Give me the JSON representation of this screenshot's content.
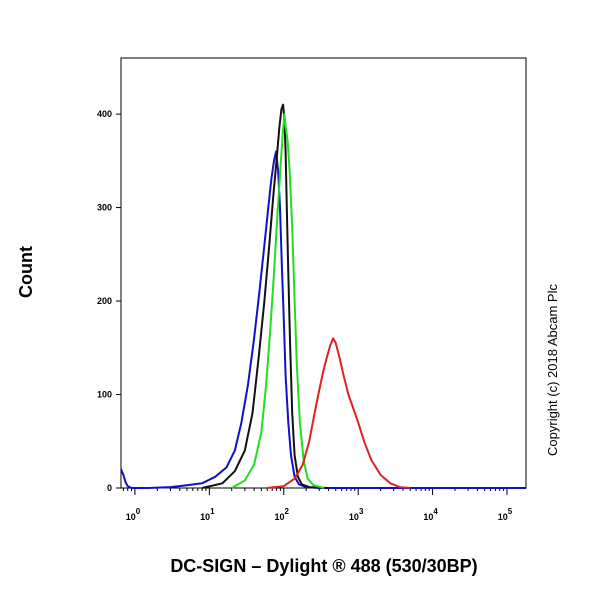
{
  "chart_data": {
    "type": "line",
    "title": "",
    "xlabel": "DC-SIGN – Dylight ® 488 (530/30BP)",
    "ylabel": "Count",
    "x_scale": "log",
    "xlim": [
      0.65,
      180000
    ],
    "ylim": [
      0,
      460
    ],
    "y_ticks": [
      0,
      100,
      200,
      300,
      400
    ],
    "x_ticks": [
      {
        "value": 1,
        "base": "10",
        "exp": "0"
      },
      {
        "value": 10,
        "base": "10",
        "exp": "1"
      },
      {
        "value": 100,
        "base": "10",
        "exp": "2"
      },
      {
        "value": 1000,
        "base": "10",
        "exp": "3"
      },
      {
        "value": 10000,
        "base": "10",
        "exp": "4"
      },
      {
        "value": 100000,
        "base": "10",
        "exp": "5"
      }
    ],
    "grid": false,
    "legend": "none",
    "series": [
      {
        "color": "#1010cc",
        "x": [
          0.65,
          0.7,
          0.75,
          0.8,
          0.9,
          1,
          1.5,
          3,
          5,
          8,
          12,
          17,
          22,
          27,
          33,
          40,
          47,
          55,
          62,
          68,
          74,
          79,
          84,
          89,
          94,
          100,
          106,
          115,
          125,
          140,
          160,
          200,
          300,
          1000,
          100000,
          180000
        ],
        "y": [
          20,
          14,
          6,
          2,
          0,
          0,
          0,
          1,
          3,
          5,
          12,
          22,
          40,
          70,
          110,
          160,
          210,
          260,
          300,
          330,
          350,
          360,
          340,
          300,
          240,
          180,
          120,
          70,
          35,
          12,
          4,
          1,
          0,
          0,
          0,
          0
        ]
      },
      {
        "color": "#111111",
        "x": [
          8,
          15,
          22,
          30,
          38,
          46,
          55,
          64,
          72,
          80,
          87,
          93,
          98,
          102,
          106,
          110,
          115,
          122,
          130,
          140,
          155,
          175,
          220,
          400
        ],
        "y": [
          0,
          5,
          18,
          40,
          80,
          140,
          200,
          260,
          310,
          350,
          385,
          405,
          410,
          395,
          360,
          300,
          230,
          150,
          80,
          35,
          12,
          4,
          1,
          0
        ]
      },
      {
        "color": "#22dd22",
        "x": [
          20,
          30,
          40,
          50,
          58,
          66,
          74,
          82,
          90,
          97,
          102,
          107,
          113,
          120,
          130,
          140,
          150,
          165,
          185,
          210,
          250,
          350
        ],
        "y": [
          0,
          8,
          25,
          60,
          110,
          170,
          230,
          290,
          340,
          380,
          400,
          385,
          370,
          340,
          280,
          200,
          130,
          70,
          30,
          10,
          3,
          0
        ]
      },
      {
        "color": "#dd2222",
        "x": [
          60,
          100,
          140,
          180,
          220,
          260,
          300,
          340,
          380,
          420,
          460,
          500,
          560,
          640,
          740,
          860,
          1000,
          1200,
          1500,
          2000,
          2700,
          3600,
          5000
        ],
        "y": [
          0,
          2,
          10,
          25,
          50,
          80,
          105,
          125,
          140,
          152,
          160,
          155,
          140,
          120,
          100,
          85,
          70,
          50,
          30,
          14,
          5,
          1,
          0
        ]
      }
    ]
  },
  "copyright": "Copyright (c) 2018 Abcam Plc"
}
